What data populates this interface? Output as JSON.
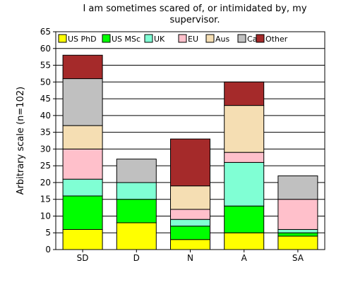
{
  "chart_data": {
    "type": "bar",
    "stacked": true,
    "title": "I am sometimes scared of, or intimidated by, my supervisor.",
    "title_lines": [
      "I am sometimes scared of, or intimidated by, my",
      "supervisor."
    ],
    "xlabel": "",
    "ylabel": "Arbitrary scale (n=102)",
    "ylim": [
      0,
      65
    ],
    "yticks": [
      0,
      5,
      10,
      15,
      20,
      25,
      30,
      35,
      40,
      45,
      50,
      55,
      60,
      65
    ],
    "grid": true,
    "legend_position": "top",
    "categories": [
      "SD",
      "D",
      "N",
      "A",
      "SA"
    ],
    "series": [
      {
        "name": "US PhD",
        "color": "#ffff00",
        "values": [
          6,
          8,
          3,
          5,
          4
        ]
      },
      {
        "name": "US MSc",
        "color": "#00ff00",
        "values": [
          10,
          7,
          4,
          8,
          1
        ]
      },
      {
        "name": "UK",
        "color": "#80ffd4",
        "values": [
          5,
          5,
          2,
          13,
          1
        ]
      },
      {
        "name": "EU",
        "color": "#ffc0cb",
        "values": [
          9,
          0,
          3,
          3,
          9
        ]
      },
      {
        "name": "Aus",
        "color": "#f5deb3",
        "values": [
          7,
          0,
          7,
          14,
          0
        ]
      },
      {
        "name": "Ca",
        "color": "#c0c0c0",
        "values": [
          14,
          7,
          0,
          0,
          7
        ]
      },
      {
        "name": "Other",
        "color": "#a52a2a",
        "values": [
          7,
          0,
          14,
          7,
          0
        ]
      }
    ]
  }
}
